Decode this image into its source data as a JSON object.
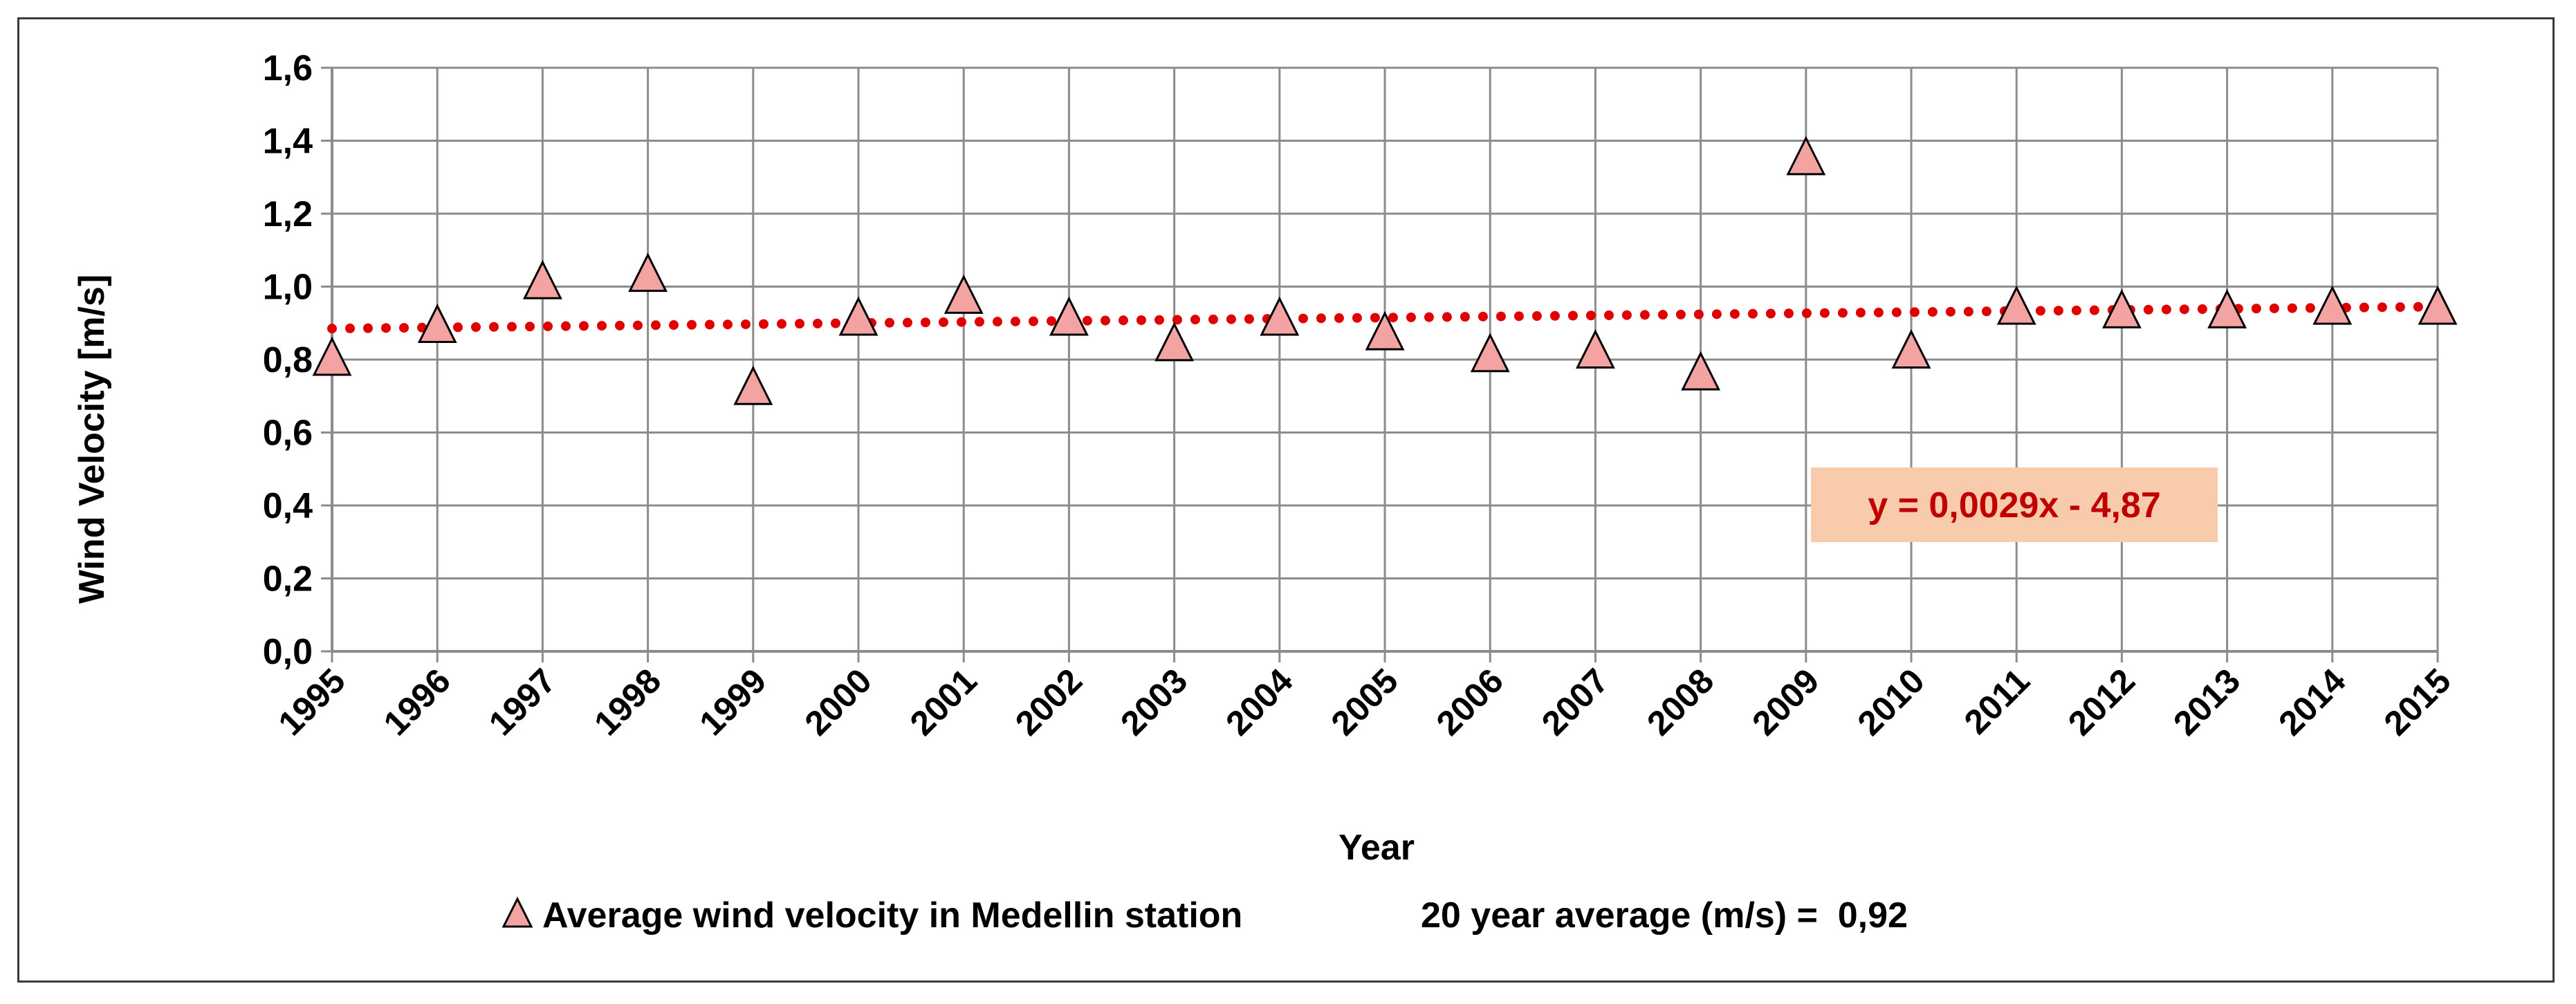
{
  "chart_data": {
    "type": "scatter",
    "xlabel": "Year",
    "ylabel": "Wind Velocity [m/s]",
    "xlim": [
      1995,
      2015
    ],
    "ylim": [
      0,
      1.6
    ],
    "y_tick_labels": [
      "0,0",
      "0,2",
      "0,4",
      "0,6",
      "0,8",
      "1,0",
      "1,2",
      "1,4",
      "1,6"
    ],
    "y_tick_values": [
      0,
      0.2,
      0.4,
      0.6,
      0.8,
      1.0,
      1.2,
      1.4,
      1.6
    ],
    "x_tick_labels": [
      "1995",
      "1996",
      "1997",
      "1998",
      "1999",
      "2000",
      "2001",
      "2002",
      "2003",
      "2004",
      "2005",
      "2006",
      "2007",
      "2008",
      "2009",
      "2010",
      "2011",
      "2012",
      "2013",
      "2014",
      "2015"
    ],
    "grid": true,
    "series": [
      {
        "name": "Average wind velocity in Medellin station",
        "marker": "triangle",
        "color": "#f4a3a3",
        "x": [
          1995,
          1996,
          1997,
          1998,
          1999,
          2000,
          2001,
          2002,
          2003,
          2004,
          2005,
          2006,
          2007,
          2008,
          2009,
          2010,
          2011,
          2012,
          2013,
          2014,
          2015
        ],
        "values": [
          0.8,
          0.89,
          1.01,
          1.03,
          0.72,
          0.91,
          0.97,
          0.91,
          0.84,
          0.91,
          0.87,
          0.81,
          0.82,
          0.76,
          1.35,
          0.82,
          0.94,
          0.93,
          0.93,
          0.94,
          0.94
        ]
      }
    ],
    "trendline": {
      "type": "linear",
      "color": "#e00000",
      "style": "dotted",
      "slope": 0.0029,
      "intercept": -4.87,
      "start_value": 0.885,
      "end_value": 0.945,
      "equation_label": "y = 0,0029x - 4,87",
      "label_bg": "#f8cbad",
      "label_color": "#c00000"
    },
    "legend": {
      "position": "bottom",
      "series_label": "Average wind velocity in Medellin station",
      "extra_text": "20 year average (m/s) =  0,92"
    }
  }
}
